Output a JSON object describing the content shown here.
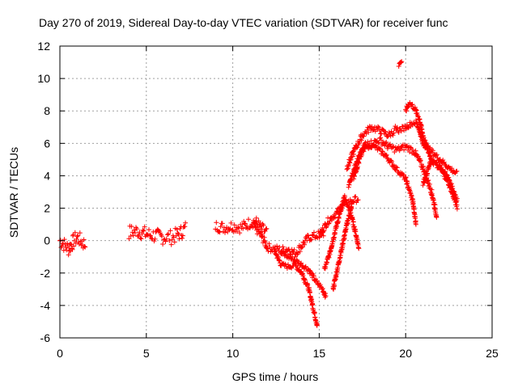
{
  "chart_data": {
    "type": "scatter",
    "title": "Day 270 of 2019, Sidereal Day-to-day VTEC variation (SDTVAR) for receiver func",
    "xlabel": "GPS time / hours",
    "ylabel": "SDTVAR / TECUs",
    "xlim": [
      0,
      25
    ],
    "ylim": [
      -6,
      12
    ],
    "xticks": [
      0,
      5,
      10,
      15,
      20,
      25
    ],
    "yticks": [
      -6,
      -4,
      -2,
      0,
      2,
      4,
      6,
      8,
      10,
      12
    ],
    "grid": true,
    "marker": "+",
    "color": "#ff0000",
    "segments": [
      {
        "x": [
          0.0,
          0.3,
          0.5,
          0.7,
          0.8,
          1.0,
          1.2,
          1.5
        ],
        "y": [
          0.0,
          -0.3,
          -0.5,
          -0.2,
          0.0,
          0.2,
          0.0,
          -0.3
        ],
        "spread": 0.9
      },
      {
        "x": [
          4.0,
          4.5,
          5.0,
          5.5,
          6.0,
          6.5,
          7.0,
          7.3
        ],
        "y": [
          0.5,
          0.6,
          0.4,
          0.3,
          0.2,
          0.2,
          0.5,
          0.8
        ],
        "spread": 0.9
      },
      {
        "x": [
          9.0,
          9.5,
          10.0,
          10.5,
          11.0,
          11.3,
          11.6,
          12.0
        ],
        "y": [
          0.9,
          0.8,
          0.9,
          0.8,
          1.1,
          1.2,
          0.8,
          0.5
        ],
        "spread": 0.7
      },
      {
        "x": [
          11.2,
          11.6,
          12.0,
          12.4,
          12.8,
          13.2,
          13.6,
          14.0,
          14.4,
          14.8,
          15.3
        ],
        "y": [
          0.9,
          0.4,
          -0.4,
          -0.5,
          -0.6,
          -0.5,
          -0.8,
          -0.3,
          0.2,
          0.3,
          0.5
        ],
        "spread": 0.5
      },
      {
        "x": [
          12.4,
          12.8,
          13.2,
          13.6,
          14.0,
          14.4,
          14.7,
          14.9
        ],
        "y": [
          -0.6,
          -1.5,
          -1.6,
          -1.5,
          -2.0,
          -3.0,
          -4.4,
          -5.3
        ],
        "spread": 0.3
      },
      {
        "x": [
          12.8,
          13.2,
          13.6,
          14.0,
          14.4,
          14.8,
          15.2,
          15.4
        ],
        "y": [
          -0.8,
          -1.0,
          -1.2,
          -1.5,
          -1.8,
          -2.5,
          -3.0,
          -3.5
        ],
        "spread": 0.3
      },
      {
        "x": [
          15.0,
          15.5,
          16.0,
          16.5,
          17.0,
          17.3
        ],
        "y": [
          0.3,
          1.2,
          1.7,
          2.3,
          2.5,
          2.6
        ],
        "spread": 0.4
      },
      {
        "x": [
          15.3,
          15.6,
          15.9,
          16.2,
          16.5
        ],
        "y": [
          -1.8,
          -0.8,
          0.5,
          1.7,
          2.8
        ],
        "spread": 0.3
      },
      {
        "x": [
          15.8,
          16.2,
          16.6,
          16.9
        ],
        "y": [
          -3.0,
          -1.0,
          1.0,
          2.2
        ],
        "spread": 0.3
      },
      {
        "x": [
          16.5,
          16.8,
          17.1,
          17.3
        ],
        "y": [
          2.5,
          1.8,
          0.5,
          -0.5
        ],
        "spread": 0.3
      },
      {
        "x": [
          16.6,
          17.0,
          17.5,
          18.0,
          18.5,
          19.0,
          19.4
        ],
        "y": [
          4.5,
          5.5,
          6.5,
          7.0,
          6.8,
          6.5,
          6.8
        ],
        "spread": 0.4
      },
      {
        "x": [
          16.7,
          17.2,
          17.7,
          18.2,
          18.8,
          19.4,
          20.0,
          20.4,
          20.6
        ],
        "y": [
          3.3,
          5.0,
          6.0,
          5.8,
          5.3,
          4.5,
          3.8,
          2.5,
          1.0
        ],
        "spread": 0.3
      },
      {
        "x": [
          17.0,
          17.5,
          18.0,
          18.5,
          19.0,
          19.5,
          20.0,
          20.5,
          21.0,
          21.5,
          21.8
        ],
        "y": [
          4.0,
          5.5,
          6.0,
          6.2,
          5.8,
          5.6,
          5.8,
          5.5,
          4.5,
          3.0,
          1.5
        ],
        "spread": 0.4
      },
      {
        "x": [
          19.6,
          19.7,
          19.8
        ],
        "y": [
          10.8,
          10.9,
          11.0
        ],
        "spread": 0.2
      },
      {
        "x": [
          19.4,
          19.6,
          19.8,
          20.0,
          20.3,
          20.6,
          20.8,
          21.0,
          21.5,
          22.0,
          22.5,
          23.0
        ],
        "y": [
          7.0,
          6.8,
          6.9,
          7.0,
          7.2,
          7.3,
          6.8,
          6.0,
          5.5,
          5.0,
          4.5,
          4.1
        ],
        "spread": 0.3
      },
      {
        "x": [
          20.0,
          20.2,
          20.5,
          20.8,
          21.0,
          21.3,
          21.6,
          22.0,
          22.4,
          22.8,
          23.0
        ],
        "y": [
          8.0,
          8.5,
          8.2,
          7.5,
          6.5,
          5.5,
          4.8,
          4.5,
          4.0,
          3.0,
          2.5
        ],
        "spread": 0.3
      },
      {
        "x": [
          21.0,
          21.5,
          22.0,
          22.5,
          23.0
        ],
        "y": [
          3.5,
          5.0,
          4.5,
          3.5,
          2.0
        ],
        "spread": 0.3
      }
    ]
  }
}
